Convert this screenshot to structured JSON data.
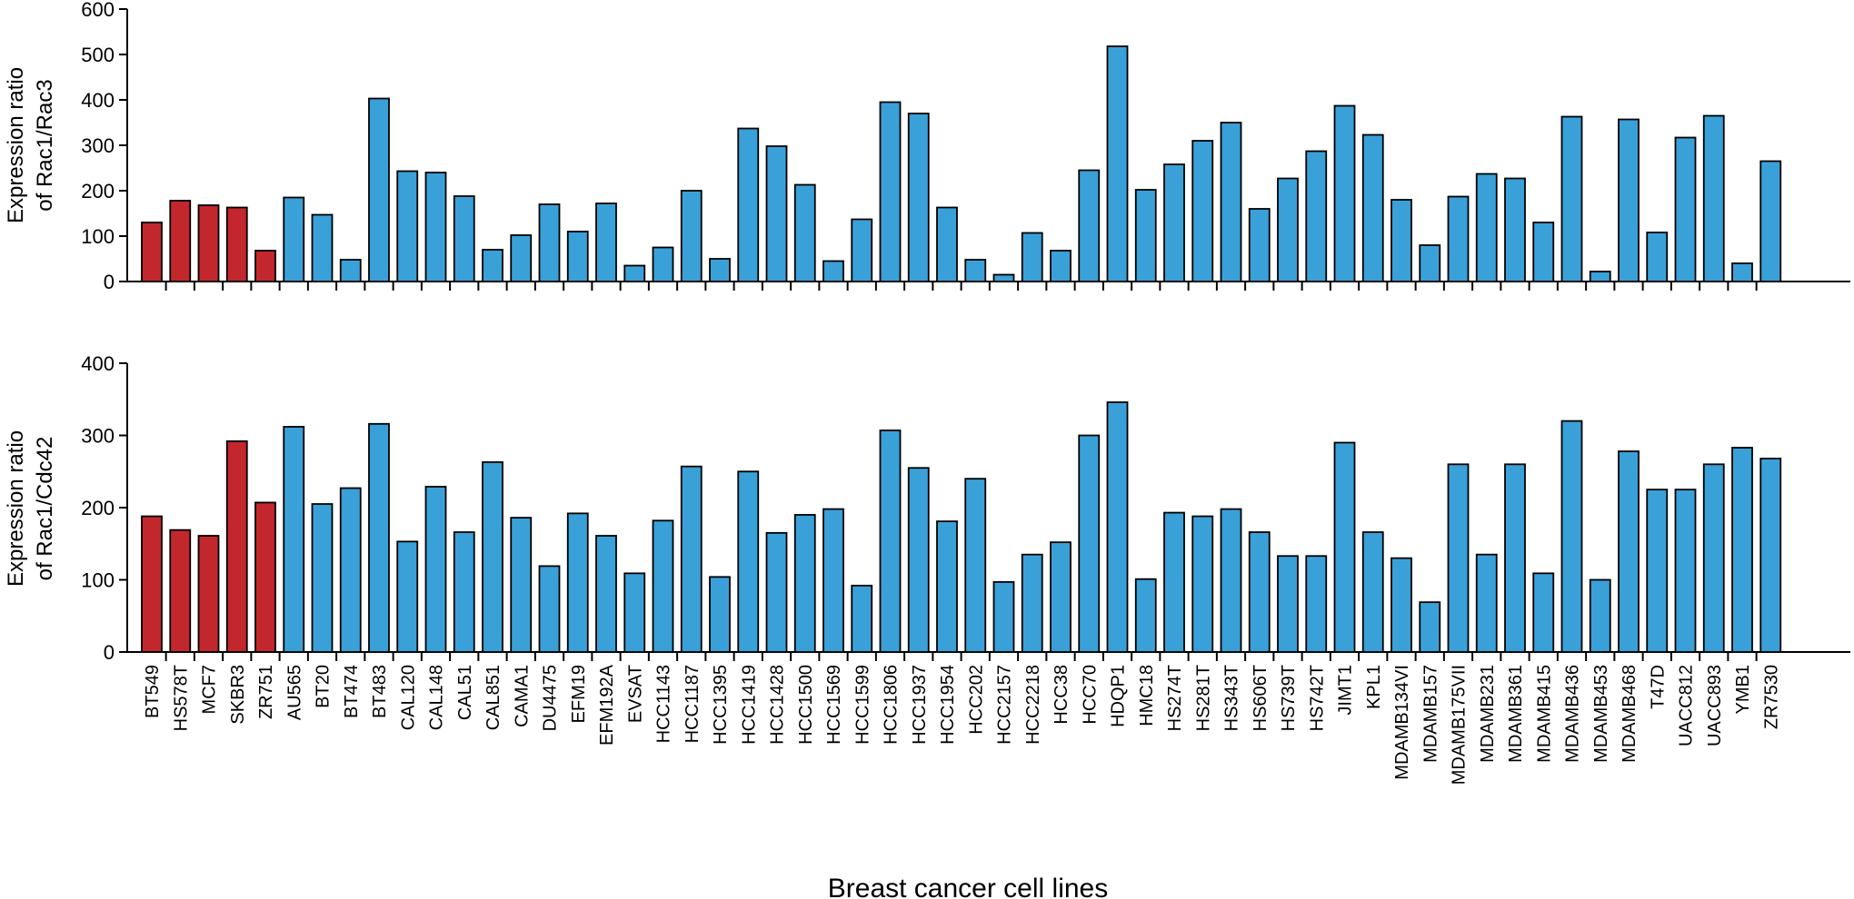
{
  "colors": {
    "red": "#c1272d",
    "blue": "#3aa0d8",
    "stroke": "#000000"
  },
  "xlabel": "Breast cancer cell lines",
  "categories": [
    "BT549",
    "HS578T",
    "MCF7",
    "SKBR3",
    "ZR751",
    "AU565",
    "BT20",
    "BT474",
    "BT483",
    "CAL120",
    "CAL148",
    "CAL51",
    "CAL851",
    "CAMA1",
    "DU4475",
    "EFM19",
    "EFM192A",
    "EVSAT",
    "HCC1143",
    "HCC1187",
    "HCC1395",
    "HCC1419",
    "HCC1428",
    "HCC1500",
    "HCC1569",
    "HCC1599",
    "HCC1806",
    "HCC1937",
    "HCC1954",
    "HCC202",
    "HCC2157",
    "HCC2218",
    "HCC38",
    "HCC70",
    "HDQP1",
    "HMC18",
    "HS274T",
    "HS281T",
    "HS343T",
    "HS606T",
    "HS739T",
    "HS742T",
    "JIMT1",
    "KPL1",
    "MDAMB134VI",
    "MDAMB157",
    "MDAMB175VII",
    "MDAMB231",
    "MDAMB361",
    "MDAMB415",
    "MDAMB436",
    "MDAMB453",
    "MDAMB468",
    "T47D",
    "UACC812",
    "UACC893",
    "YMB1",
    "ZR7530"
  ],
  "bar_colors": [
    "red",
    "red",
    "red",
    "red",
    "red",
    "blue",
    "blue",
    "blue",
    "blue",
    "blue",
    "blue",
    "blue",
    "blue",
    "blue",
    "blue",
    "blue",
    "blue",
    "blue",
    "blue",
    "blue",
    "blue",
    "blue",
    "blue",
    "blue",
    "blue",
    "blue",
    "blue",
    "blue",
    "blue",
    "blue",
    "blue",
    "blue",
    "blue",
    "blue",
    "blue",
    "blue",
    "blue",
    "blue",
    "blue",
    "blue",
    "blue",
    "blue",
    "blue",
    "blue",
    "blue",
    "blue",
    "blue",
    "blue",
    "blue",
    "blue",
    "blue",
    "blue",
    "blue",
    "blue",
    "blue",
    "blue",
    "blue",
    "blue"
  ],
  "chart_data": [
    {
      "type": "bar",
      "ylabel_lines": [
        "Expression ratio",
        "of Rac1/Rac3"
      ],
      "ylim": [
        0,
        600
      ],
      "yticks": [
        0,
        100,
        200,
        300,
        400,
        500,
        600
      ],
      "values": [
        130,
        178,
        168,
        163,
        68,
        185,
        147,
        48,
        403,
        243,
        240,
        188,
        70,
        102,
        170,
        110,
        172,
        35,
        75,
        200,
        50,
        337,
        298,
        213,
        45,
        137,
        395,
        370,
        163,
        48,
        15,
        107,
        68,
        245,
        518,
        202,
        258,
        310,
        350,
        160,
        227,
        287,
        387,
        323,
        180,
        80,
        187,
        237,
        227,
        130,
        363,
        22,
        357,
        108,
        317,
        365,
        40,
        265
      ]
    },
    {
      "type": "bar",
      "ylabel_lines": [
        "Expression ratio",
        "of Rac1/Cdc42"
      ],
      "ylim": [
        0,
        400
      ],
      "yticks": [
        0,
        100,
        200,
        300,
        400
      ],
      "values": [
        188,
        169,
        161,
        292,
        207,
        312,
        205,
        227,
        316,
        153,
        229,
        166,
        263,
        186,
        119,
        192,
        161,
        109,
        182,
        257,
        104,
        250,
        165,
        190,
        198,
        92,
        307,
        255,
        181,
        240,
        97,
        135,
        152,
        300,
        346,
        101,
        193,
        188,
        198,
        166,
        133,
        133,
        290,
        166,
        130,
        69,
        260,
        135,
        260,
        109,
        320,
        100,
        278,
        225,
        225,
        260,
        283,
        268
      ]
    }
  ]
}
